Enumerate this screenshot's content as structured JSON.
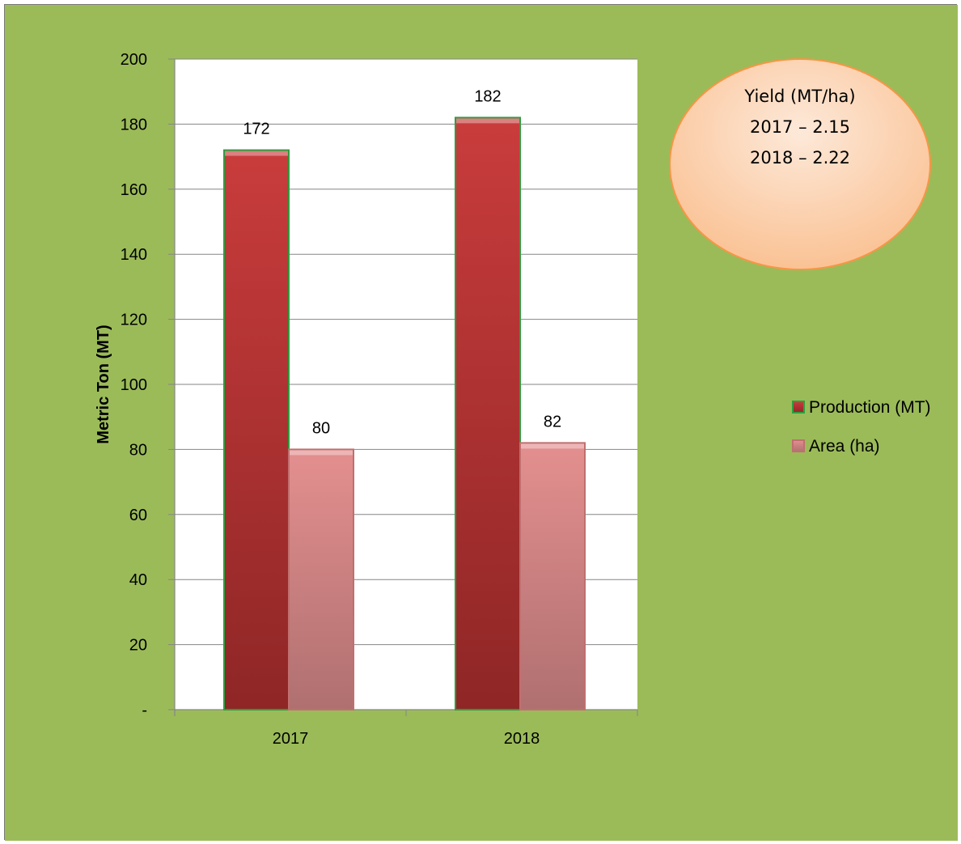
{
  "chart_data": {
    "type": "bar",
    "categories": [
      "2017",
      "2018"
    ],
    "series": [
      {
        "name": "Production (MT)",
        "values": [
          172,
          182
        ],
        "color": "#b53434",
        "border": "#2e9e3f"
      },
      {
        "name": "Area (ha)",
        "values": [
          80,
          82
        ],
        "color": "#d98080",
        "border": "#c06f6f"
      }
    ],
    "data_labels": [
      [
        "172",
        "182"
      ],
      [
        "80",
        "82"
      ]
    ],
    "ylabel": "Metric Ton (MT)",
    "xlabel": "",
    "ylim": [
      0,
      200
    ],
    "yticks": [
      0,
      20,
      40,
      60,
      80,
      100,
      120,
      140,
      160,
      180,
      200
    ],
    "ytick_labels": [
      "-",
      "20",
      "40",
      "60",
      "80",
      "100",
      "120",
      "140",
      "160",
      "180",
      "200"
    ],
    "grid": true,
    "legend_position": "right",
    "annotation": {
      "lines": [
        "Yield (MT/ha)",
        "2017 – 2.15",
        "2018 – 2.22"
      ]
    },
    "colors": {
      "background": "#9bbb59",
      "plot_area": "#ffffff",
      "gridline": "#868686",
      "bubble": "#fcd5b4",
      "bubble_border": "#f79646"
    }
  }
}
